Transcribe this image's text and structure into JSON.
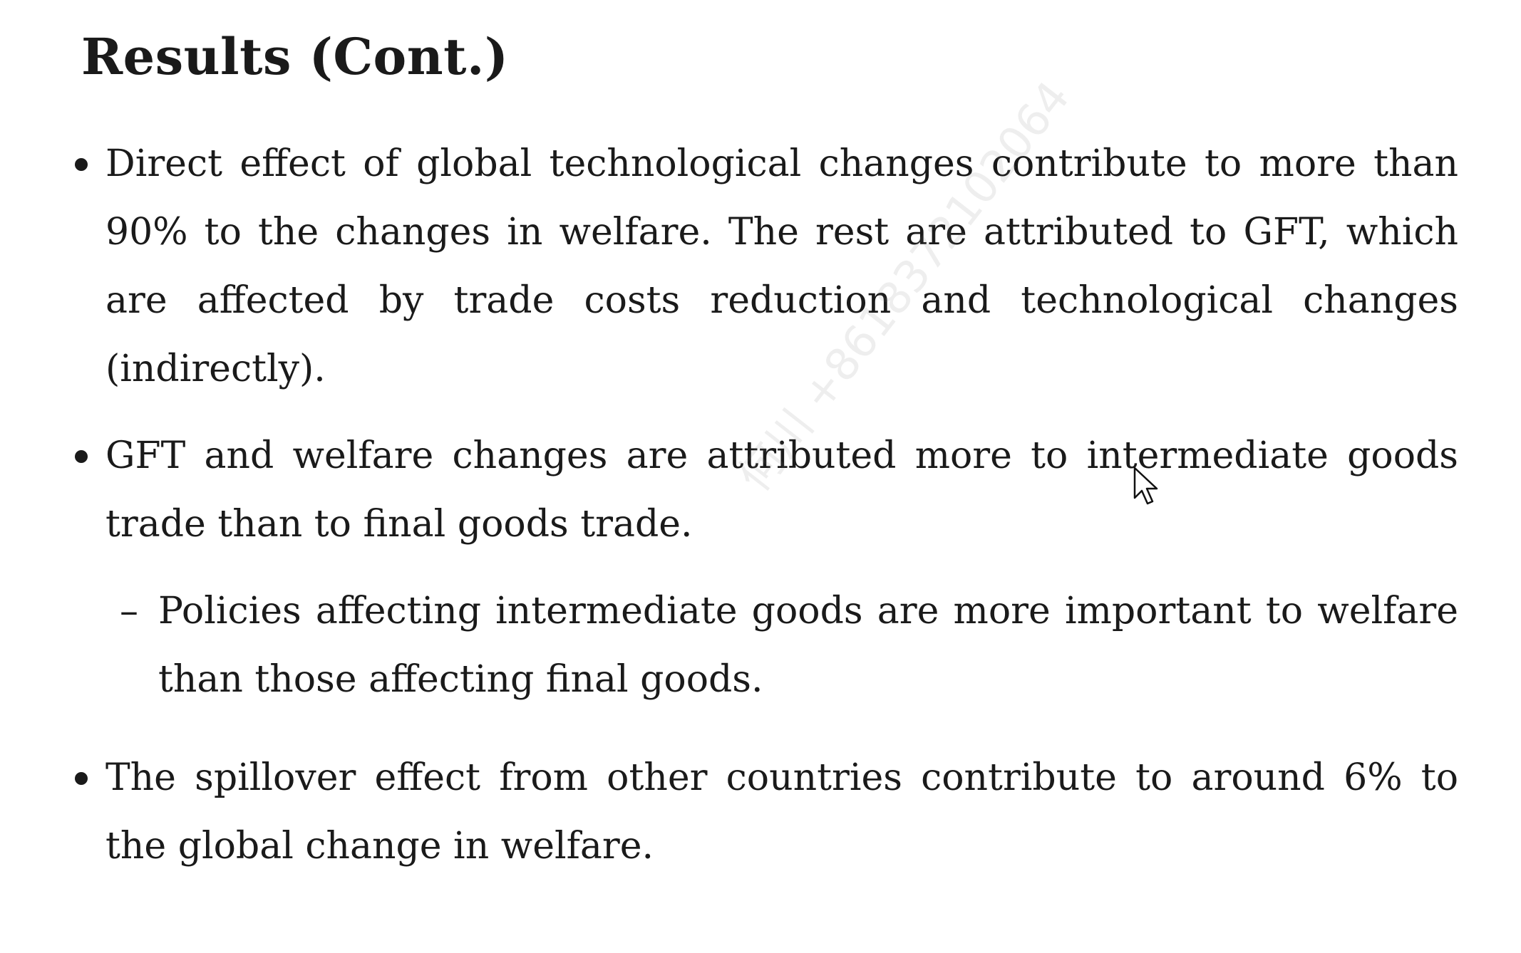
{
  "slide": {
    "title": "Results (Cont.)",
    "bullets": [
      {
        "text": "Direct effect of global technological changes contribute to more than 90% to the changes in welfare. The rest are attributed to GFT, which are affected by trade costs reduction and technological changes (indirectly)."
      },
      {
        "text": "GFT and welfare changes are attributed more to intermediate goods trade than to final goods trade.",
        "sub": {
          "marker": "–",
          "text": "Policies affecting intermediate goods are more important to welfare than those affecting final goods."
        }
      },
      {
        "text": "The spillover effect from other countries contribute to around 6% to the global change in welfare."
      }
    ]
  },
  "watermark": {
    "text": "何川 +8618372102064"
  },
  "icons": {
    "cursor": "mouse-pointer-arrow-icon"
  }
}
